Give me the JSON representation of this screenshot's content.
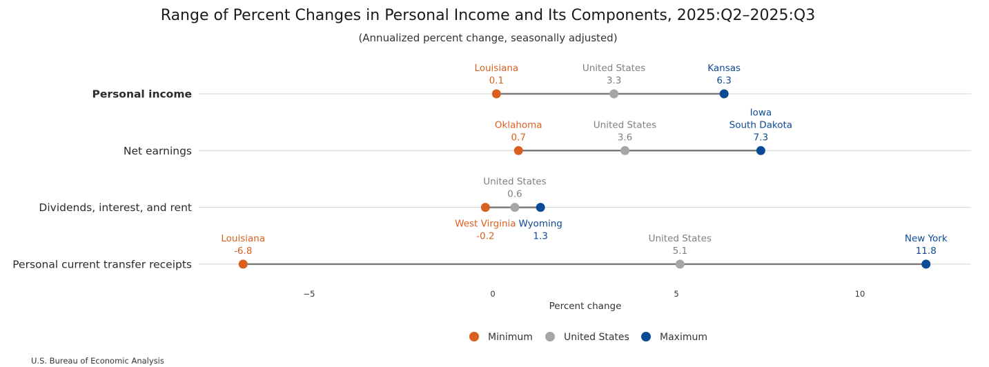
{
  "chart_data": {
    "type": "dumbbell",
    "title": "Range of Percent Changes in Personal Income and Its Components, 2025:Q2–2025:Q3",
    "subtitle": "(Annualized percent change, seasonally adjusted)",
    "xlabel": "Percent change",
    "xlim": [
      -8,
      13
    ],
    "xticks": [
      {
        "value": -5,
        "label": "−5"
      },
      {
        "value": 0,
        "label": "0"
      },
      {
        "value": 5,
        "label": "5"
      },
      {
        "value": 10,
        "label": "10"
      }
    ],
    "grid": true,
    "colors": {
      "minimum": "#D9601E",
      "us": "#A6A6A6",
      "maximum": "#0B4A94",
      "connector": "#7A7A7A",
      "gridline": "#D4D4D4",
      "min_label": "#D9601E",
      "us_label": "#7F7F7F",
      "max_label": "#0B4A94"
    },
    "rows": [
      {
        "label": "Personal income",
        "bold": true,
        "min": {
          "state": "Louisiana",
          "value": 0.1,
          "display": "0.1",
          "label_pos": "above"
        },
        "us": {
          "state": "United States",
          "value": 3.3,
          "display": "3.3",
          "label_pos": "above"
        },
        "max": {
          "state": "Kansas",
          "value": 6.3,
          "display": "6.3",
          "label_pos": "above"
        }
      },
      {
        "label": "Net earnings",
        "bold": false,
        "min": {
          "state": "Oklahoma",
          "value": 0.7,
          "display": "0.7",
          "label_pos": "above"
        },
        "us": {
          "state": "United States",
          "value": 3.6,
          "display": "3.6",
          "label_pos": "above"
        },
        "max": {
          "state": "Iowa\nSouth Dakota",
          "value": 7.3,
          "display": "7.3",
          "label_pos": "above"
        }
      },
      {
        "label": "Dividends, interest, and rent",
        "bold": false,
        "min": {
          "state": "West Virginia",
          "value": -0.2,
          "display": "-0.2",
          "label_pos": "below"
        },
        "us": {
          "state": "United States",
          "value": 0.6,
          "display": "0.6",
          "label_pos": "above"
        },
        "max": {
          "state": "Wyoming",
          "value": 1.3,
          "display": "1.3",
          "label_pos": "below"
        }
      },
      {
        "label": "Personal current transfer receipts",
        "bold": false,
        "min": {
          "state": "Louisiana",
          "value": -6.8,
          "display": "-6.8",
          "label_pos": "above"
        },
        "us": {
          "state": "United States",
          "value": 5.1,
          "display": "5.1",
          "label_pos": "above"
        },
        "max": {
          "state": "New York",
          "value": 11.8,
          "display": "11.8",
          "label_pos": "above"
        }
      }
    ],
    "legend": {
      "placement": "bottom-center",
      "items": [
        {
          "key": "minimum",
          "label": "Minimum"
        },
        {
          "key": "us",
          "label": "United States"
        },
        {
          "key": "maximum",
          "label": "Maximum"
        }
      ]
    }
  },
  "source": "U.S. Bureau of Economic Analysis"
}
